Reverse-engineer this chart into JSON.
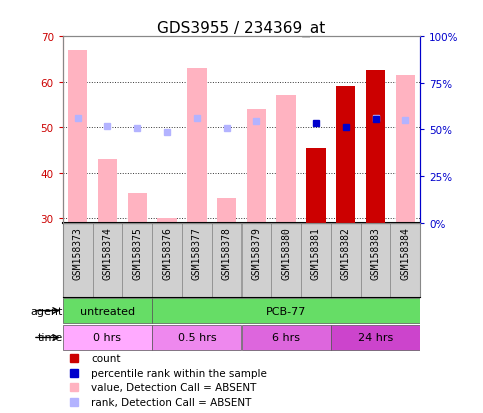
{
  "title": "GDS3955 / 234369_at",
  "samples": [
    "GSM158373",
    "GSM158374",
    "GSM158375",
    "GSM158376",
    "GSM158377",
    "GSM158378",
    "GSM158379",
    "GSM158380",
    "GSM158381",
    "GSM158382",
    "GSM158383",
    "GSM158384"
  ],
  "value_absent": [
    67,
    43,
    35.5,
    30,
    63,
    34.5,
    54,
    57,
    null,
    null,
    62.5,
    61.5
  ],
  "rank_absent": [
    56,
    52,
    51,
    48.5,
    56,
    50.5,
    54.5,
    null,
    null,
    null,
    56,
    55
  ],
  "count": [
    null,
    null,
    null,
    null,
    null,
    null,
    null,
    null,
    45.5,
    59,
    62.5,
    null
  ],
  "percentile_rank": [
    null,
    null,
    null,
    null,
    null,
    null,
    null,
    null,
    53.5,
    51.5,
    55.5,
    null
  ],
  "ylim_left": [
    29,
    70
  ],
  "ylim_right": [
    0,
    100
  ],
  "yticks_left": [
    30,
    40,
    50,
    60,
    70
  ],
  "yticks_right": [
    0,
    25,
    50,
    75,
    100
  ],
  "ytick_labels_right": [
    "0%",
    "25%",
    "50%",
    "75%",
    "100%"
  ],
  "bar_width": 0.65,
  "color_value_absent": "#ffb3c1",
  "color_rank_absent": "#b3b3ff",
  "color_count": "#cc0000",
  "color_percentile": "#0000cc",
  "bg_color": "#ffffff",
  "plot_bg": "#ffffff",
  "axis_color_left": "#cc0000",
  "axis_color_right": "#0000cc",
  "agent_color": "#66dd66",
  "agent_groups": [
    {
      "label": "untreated",
      "start": 0,
      "end": 3
    },
    {
      "label": "PCB-77",
      "start": 3,
      "end": 12
    }
  ],
  "time_colors": [
    "#ffaaff",
    "#ee88ee",
    "#dd66dd",
    "#cc44cc"
  ],
  "time_groups": [
    {
      "label": "0 hrs",
      "start": 0,
      "end": 3
    },
    {
      "label": "0.5 hrs",
      "start": 3,
      "end": 6
    },
    {
      "label": "6 hrs",
      "start": 6,
      "end": 9
    },
    {
      "label": "24 hrs",
      "start": 9,
      "end": 12
    }
  ],
  "label_fontsize": 8,
  "tick_fontsize": 7.5,
  "title_fontsize": 11,
  "sample_fontsize": 7
}
